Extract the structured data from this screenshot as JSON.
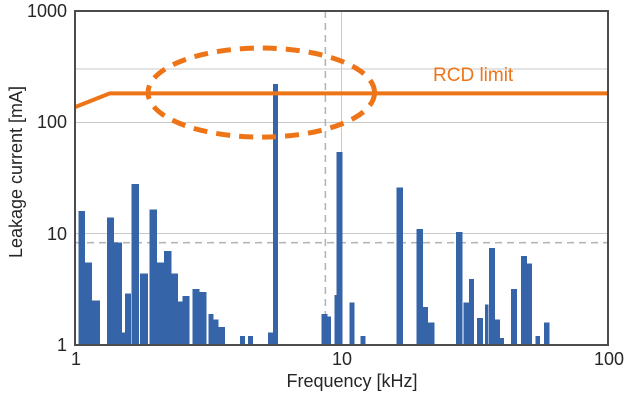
{
  "colors": {
    "bar": "#3565a8",
    "limit_orange": "#ee7418",
    "grid": "#c9c9c9",
    "ref_dash": "#b5b5b5",
    "frame": "#4c4c4c",
    "text": "#262626",
    "background": "#ffffff"
  },
  "chart_data": {
    "type": "bar",
    "title": "",
    "xlabel": "Frequency [kHz]",
    "ylabel": "Leakage current [mA]",
    "x_scale": "log",
    "y_scale": "log",
    "xlim": [
      1,
      100
    ],
    "ylim": [
      1,
      1000
    ],
    "x_ticks": [
      "1",
      "10",
      "100"
    ],
    "y_ticks": [
      "1",
      "10",
      "100",
      "1000"
    ],
    "h_gridlines_ma": [
      10,
      100,
      300
    ],
    "v_gridlines_khz": [
      10
    ],
    "ref_dashed_lines": {
      "vertical_khz": 8.7,
      "horizontal_ma": 8.3
    },
    "bars_f_lo_f_hi_ma": [
      [
        1.03,
        1.09,
        16
      ],
      [
        1.09,
        1.16,
        5.5
      ],
      [
        1.16,
        1.24,
        2.5
      ],
      [
        1.32,
        1.4,
        14
      ],
      [
        1.4,
        1.5,
        8.3
      ],
      [
        1.5,
        1.54,
        1.3
      ],
      [
        1.54,
        1.62,
        2.9
      ],
      [
        1.63,
        1.74,
        28
      ],
      [
        1.75,
        1.88,
        4.4
      ],
      [
        1.9,
        2.03,
        16.5
      ],
      [
        2.03,
        2.16,
        5.5
      ],
      [
        2.16,
        2.3,
        7.0
      ],
      [
        2.3,
        2.44,
        4.4
      ],
      [
        2.44,
        2.53,
        2.45
      ],
      [
        2.53,
        2.69,
        2.75
      ],
      [
        2.76,
        2.93,
        3.2
      ],
      [
        2.93,
        3.12,
        3.0
      ],
      [
        3.17,
        3.31,
        1.9
      ],
      [
        3.31,
        3.45,
        1.7
      ],
      [
        3.45,
        3.66,
        1.45
      ],
      [
        4.16,
        4.34,
        1.2
      ],
      [
        4.46,
        4.65,
        1.2
      ],
      [
        5.3,
        5.53,
        1.3
      ],
      [
        5.53,
        5.78,
        222
      ],
      [
        8.42,
        8.86,
        1.9
      ],
      [
        8.86,
        9.15,
        1.8
      ],
      [
        9.4,
        9.58,
        2.8
      ],
      [
        9.58,
        10.1,
        54
      ],
      [
        10.7,
        11.2,
        2.4
      ],
      [
        11.8,
        12.3,
        1.2
      ],
      [
        16.1,
        17.0,
        26
      ],
      [
        19.1,
        20.2,
        11
      ],
      [
        20.2,
        21.1,
        2.2
      ],
      [
        21.1,
        22.3,
        1.6
      ],
      [
        26.9,
        28.5,
        10.4
      ],
      [
        28.7,
        30.1,
        2.4
      ],
      [
        30.1,
        31.4,
        3.9
      ],
      [
        32.3,
        33.9,
        1.75
      ],
      [
        34.5,
        35.6,
        2.3
      ],
      [
        35.8,
        37.7,
        7.4
      ],
      [
        37.7,
        39.4,
        1.7
      ],
      [
        39.4,
        40.8,
        1.15
      ],
      [
        43.3,
        45.5,
        3.2
      ],
      [
        47.2,
        49.6,
        6.3
      ],
      [
        49.6,
        51.8,
        5.4
      ],
      [
        53.5,
        55.5,
        1.2
      ],
      [
        57.5,
        60.4,
        1.6
      ]
    ],
    "rcd_line": {
      "label": "RCD limit",
      "points_khz_ma": [
        [
          1,
          137
        ],
        [
          1.35,
          182
        ],
        [
          100,
          182
        ]
      ]
    },
    "highlight_ellipse": {
      "center_khz": 5.0,
      "center_ma": 185,
      "rx_decades": 0.425,
      "ry_decades": 0.4,
      "style": "dashed"
    },
    "legend": "none",
    "grid": "on"
  }
}
